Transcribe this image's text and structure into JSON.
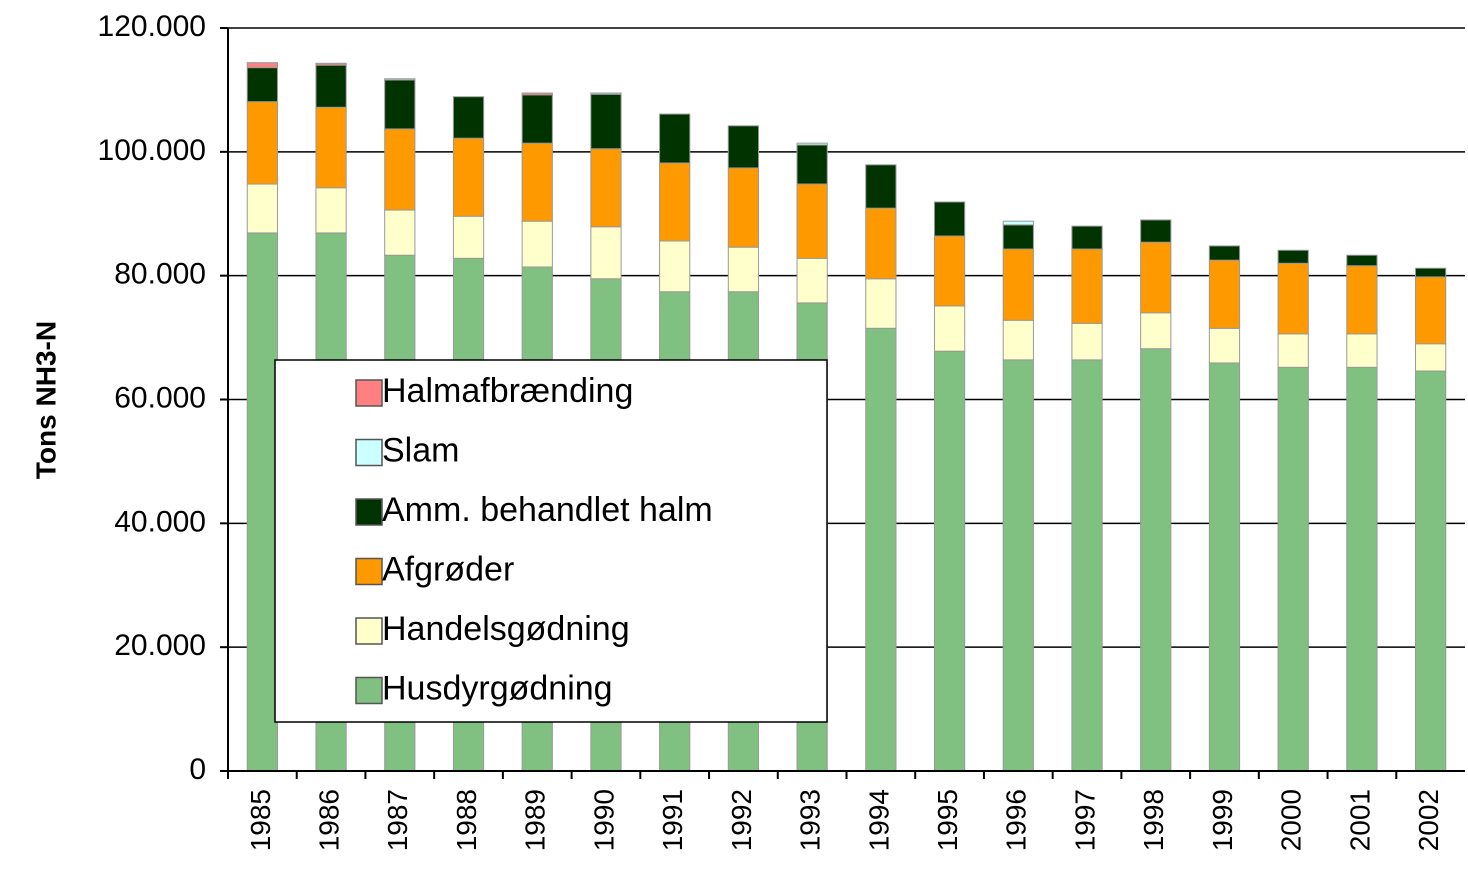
{
  "chart_data": {
    "type": "stacked_bar",
    "y_label": "Tons NH3-N",
    "categories": [
      "1985",
      "1986",
      "1987",
      "1988",
      "1989",
      "1990",
      "1991",
      "1992",
      "1993",
      "1994",
      "1995",
      "1996",
      "1997",
      "1998",
      "1999",
      "2000",
      "2001",
      "2002"
    ],
    "series": [
      {
        "name": "Husdyrgødning",
        "color": "#80c080",
        "values": [
          86900,
          86900,
          83300,
          82800,
          81400,
          79500,
          77400,
          77400,
          75600,
          71500,
          67800,
          66400,
          66400,
          68200,
          65900,
          65200,
          65200,
          64600
        ]
      },
      {
        "name": "Handelsgødning",
        "color": "#ffffcc",
        "values": [
          7900,
          7300,
          7300,
          6800,
          7400,
          8400,
          8200,
          7200,
          7200,
          8000,
          7300,
          6400,
          5900,
          5800,
          5600,
          5400,
          5400,
          4400
        ]
      },
      {
        "name": "Afgrøder",
        "color": "#ff9900",
        "values": [
          13300,
          13000,
          13100,
          12600,
          12600,
          12600,
          12600,
          12800,
          12000,
          11400,
          11300,
          11500,
          12000,
          11400,
          11000,
          11400,
          11000,
          10800
        ]
      },
      {
        "name": "Amm. behandlet halm",
        "color": "#003300",
        "values": [
          5500,
          6800,
          7900,
          6700,
          7800,
          8800,
          7900,
          6800,
          6300,
          7000,
          5500,
          3900,
          3700,
          3600,
          2300,
          2100,
          1700,
          1400
        ]
      },
      {
        "name": "Slam",
        "color": "#ccffff",
        "values": [
          0,
          0,
          200,
          0,
          0,
          200,
          0,
          0,
          300,
          0,
          0,
          600,
          0,
          0,
          0,
          0,
          0,
          0
        ]
      },
      {
        "name": "Halmafbrænding",
        "color": "#ff8080",
        "values": [
          800,
          300,
          0,
          0,
          300,
          0,
          0,
          0,
          0,
          0,
          0,
          0,
          0,
          0,
          0,
          0,
          0,
          0
        ]
      }
    ],
    "ylim": [
      0,
      120000
    ],
    "yticks": [
      0,
      {
        "value": 20000,
        "label": "20.000"
      },
      {
        "value": 40000,
        "label": "40.000"
      },
      {
        "value": 60000,
        "label": "60.000"
      },
      {
        "value": 80000,
        "label": "80.000"
      },
      {
        "value": 100000,
        "label": "100.000"
      },
      {
        "value": 120000,
        "label": "120.000"
      }
    ],
    "grid": true,
    "legend": "left"
  }
}
